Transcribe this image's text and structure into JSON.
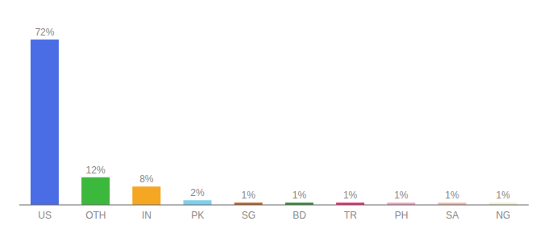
{
  "chart_data": {
    "type": "bar",
    "categories": [
      "US",
      "OTH",
      "IN",
      "PK",
      "SG",
      "BD",
      "TR",
      "PH",
      "SA",
      "NG"
    ],
    "values": [
      72,
      12,
      8,
      2,
      1,
      1,
      1,
      1,
      1,
      1
    ],
    "value_labels": [
      "72%",
      "12%",
      "8%",
      "2%",
      "1%",
      "1%",
      "1%",
      "1%",
      "1%",
      "1%"
    ],
    "colors": [
      "#4a6de5",
      "#3cb83c",
      "#f5a623",
      "#7ecfed",
      "#b85c20",
      "#2d8a2d",
      "#e8256e",
      "#f0a0b8",
      "#f0b8a8",
      "#f0f0d0"
    ],
    "ylim": [
      0,
      78
    ],
    "data_labels": true,
    "tick_labels": "x",
    "grid": false
  }
}
